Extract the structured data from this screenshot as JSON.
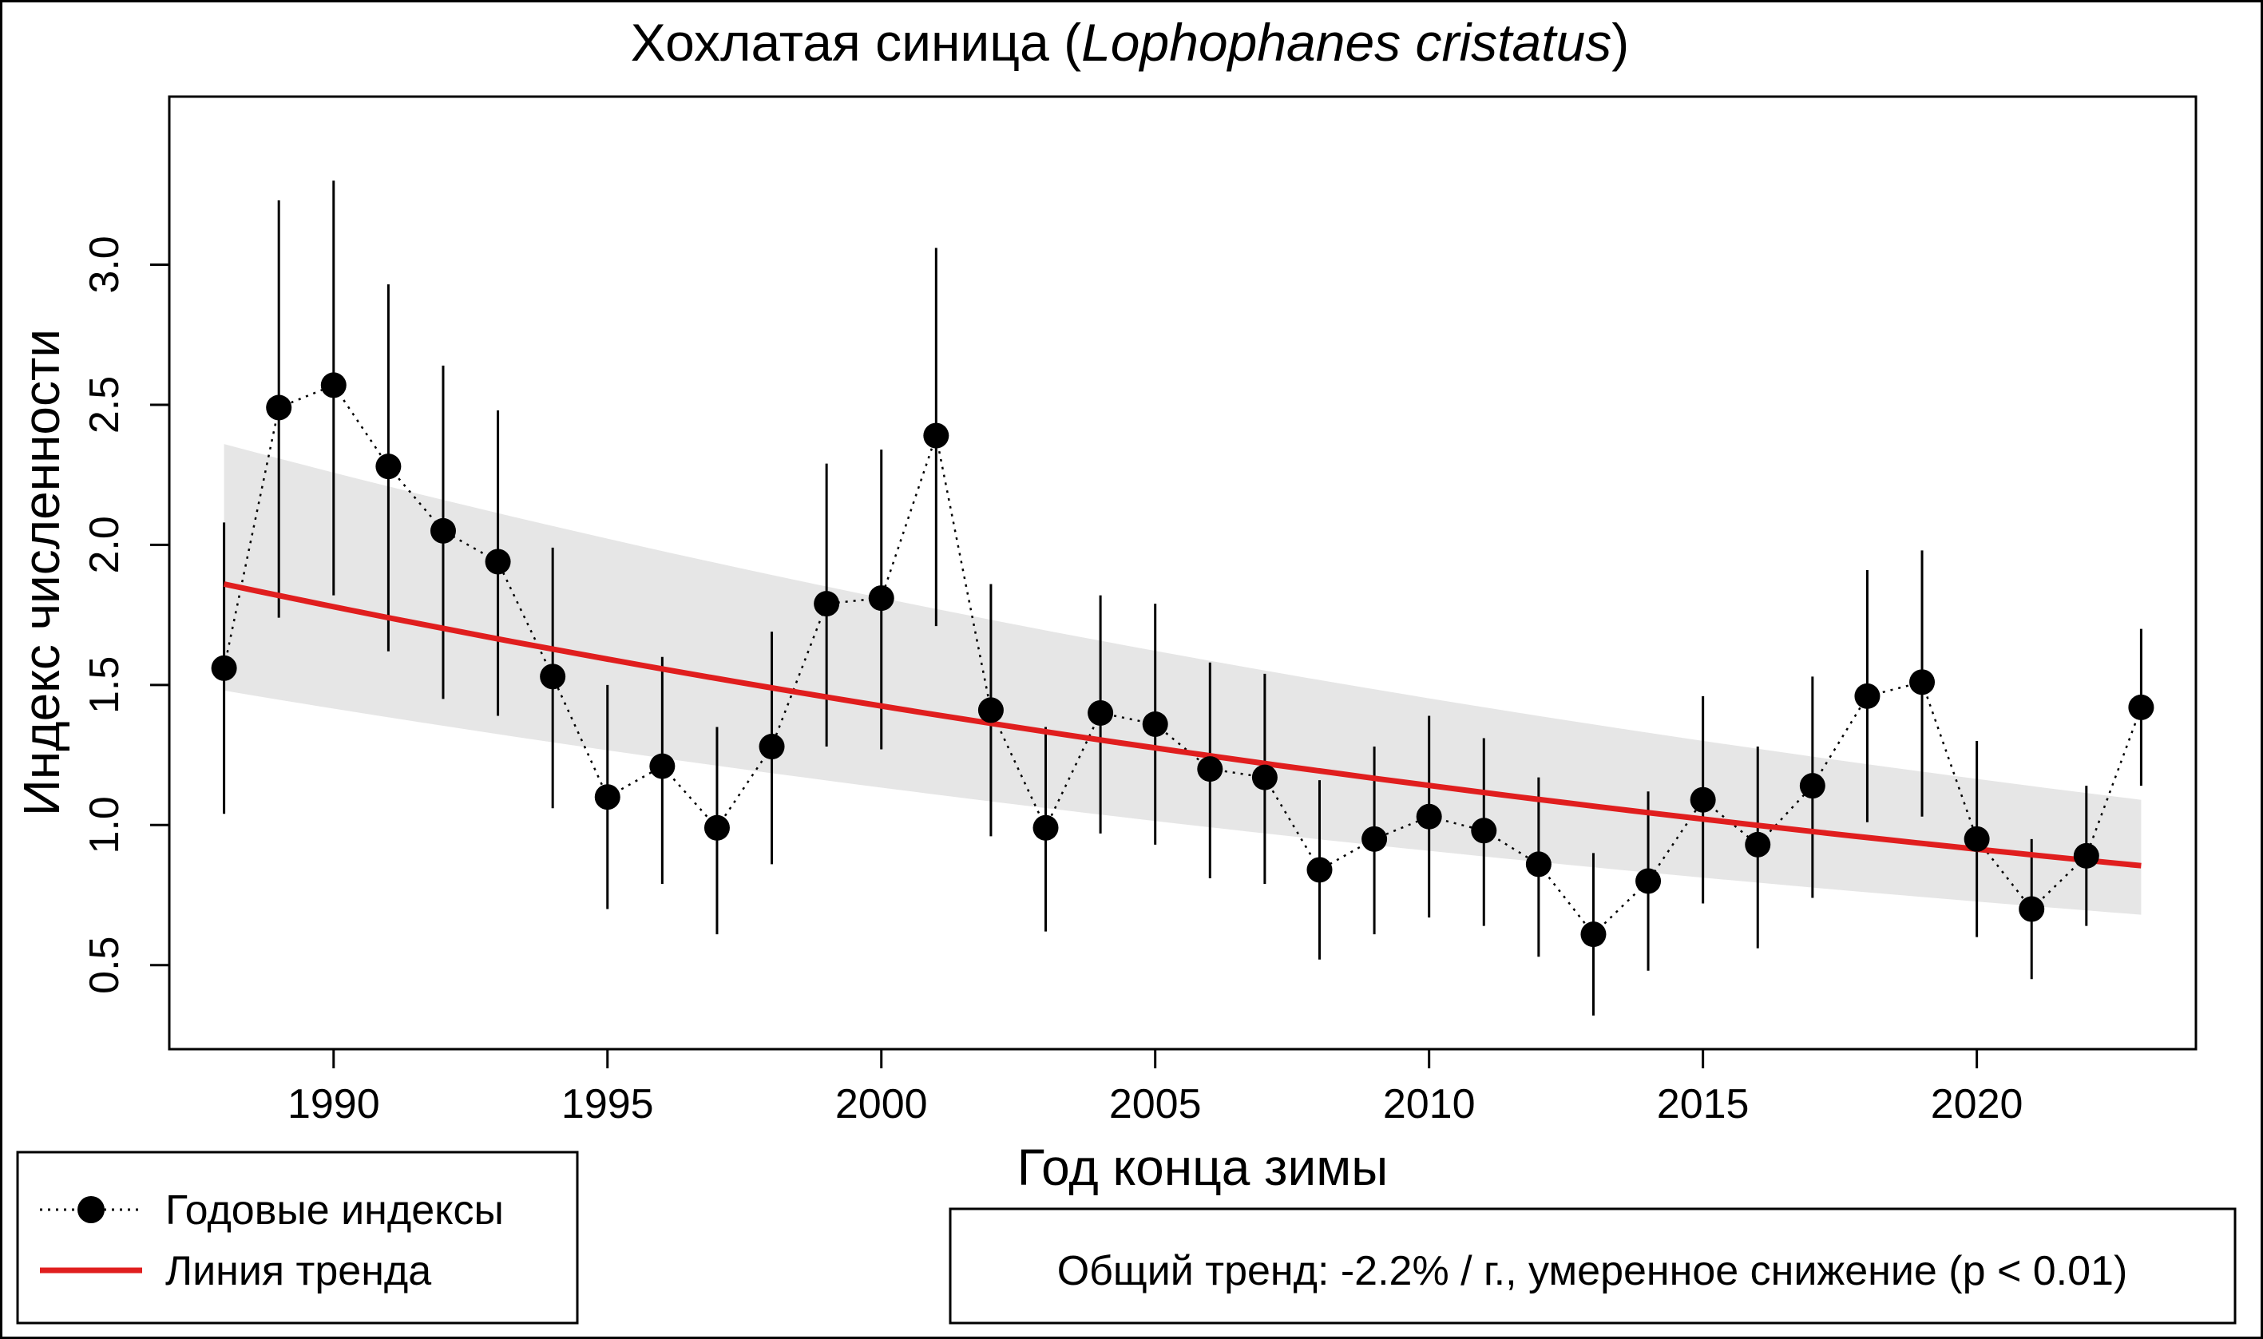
{
  "chart_data": {
    "type": "line",
    "title": {
      "plain_before": "Хохлатая синица (",
      "italic": "Lophophanes cristatus",
      "plain_after": ")"
    },
    "xlabel": "Год конца зимы",
    "ylabel": "Индекс численности",
    "xlim": [
      1987,
      2024
    ],
    "ylim": [
      0.2,
      3.6
    ],
    "x_ticks": [
      1990,
      1995,
      2000,
      2005,
      2010,
      2015,
      2020
    ],
    "y_ticks": [
      0.5,
      1.0,
      1.5,
      2.0,
      2.5,
      3.0
    ],
    "y_tick_labels": [
      "0.5",
      "1.0",
      "1.5",
      "2.0",
      "2.5",
      "3.0"
    ],
    "series": [
      {
        "name": "Годовые индексы",
        "style": "points-dotted",
        "color": "#000000",
        "x": [
          1988,
          1989,
          1990,
          1991,
          1992,
          1993,
          1994,
          1995,
          1996,
          1997,
          1998,
          1999,
          2000,
          2001,
          2002,
          2003,
          2004,
          2005,
          2006,
          2007,
          2008,
          2009,
          2010,
          2011,
          2012,
          2013,
          2014,
          2015,
          2016,
          2017,
          2018,
          2019,
          2020,
          2021,
          2022,
          2023
        ],
        "y": [
          1.56,
          2.49,
          2.57,
          2.28,
          2.05,
          1.94,
          1.53,
          1.1,
          1.21,
          0.99,
          1.28,
          1.79,
          1.81,
          2.39,
          1.41,
          0.99,
          1.4,
          1.36,
          1.2,
          1.17,
          0.84,
          0.95,
          1.03,
          0.98,
          0.86,
          0.61,
          0.8,
          1.09,
          0.93,
          1.14,
          1.46,
          1.51,
          0.95,
          0.7,
          0.89,
          1.42
        ],
        "lower": [
          1.04,
          1.74,
          1.82,
          1.62,
          1.45,
          1.39,
          1.06,
          0.7,
          0.79,
          0.61,
          0.86,
          1.28,
          1.27,
          1.71,
          0.96,
          0.62,
          0.97,
          0.93,
          0.81,
          0.79,
          0.52,
          0.61,
          0.67,
          0.64,
          0.53,
          0.32,
          0.48,
          0.72,
          0.56,
          0.74,
          1.01,
          1.03,
          0.6,
          0.45,
          0.64,
          1.14
        ],
        "upper": [
          2.08,
          3.23,
          3.3,
          2.93,
          2.64,
          2.48,
          1.99,
          1.5,
          1.6,
          1.35,
          1.69,
          2.29,
          2.34,
          3.06,
          1.86,
          1.35,
          1.82,
          1.79,
          1.58,
          1.54,
          1.16,
          1.28,
          1.39,
          1.31,
          1.17,
          0.9,
          1.12,
          1.46,
          1.28,
          1.53,
          1.91,
          1.98,
          1.3,
          0.95,
          1.14,
          1.7
        ]
      },
      {
        "name": "Линия тренда",
        "style": "line",
        "color": "#e01e1e",
        "x": [
          1988,
          2023
        ],
        "y": [
          1.86,
          0.855
        ],
        "band_lower": [
          1.48,
          0.68
        ],
        "band_upper": [
          2.36,
          1.09
        ],
        "band_color": "#e6e6e6"
      }
    ],
    "legend": {
      "position": "bottom-left",
      "items": [
        "Годовые индексы",
        "Линия тренда"
      ]
    },
    "annotation": {
      "text": "Общий тренд: -2.2% / г., умеренное снижение (p < 0.01)",
      "color": "#e01e1e",
      "position": "bottom-right"
    }
  }
}
